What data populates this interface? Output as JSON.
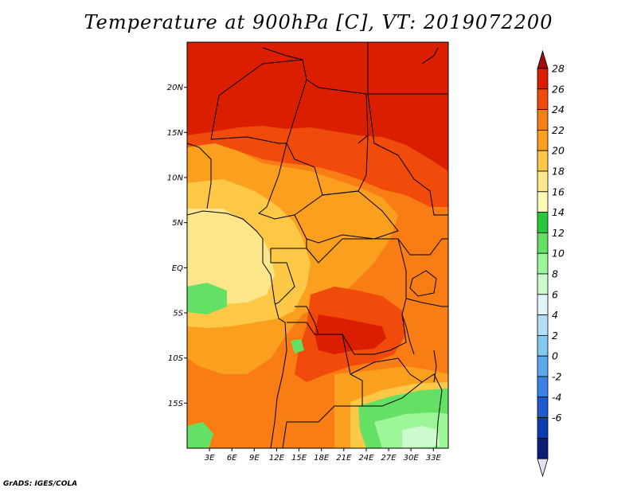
{
  "title": "Temperature at 900hPa [C], VT: 2019072200",
  "credit": "GrADS: IGES/COLA",
  "map": {
    "lon_range": [
      0,
      35
    ],
    "lat_range": [
      -20,
      25
    ],
    "lat_ticks": [
      {
        "value": 20,
        "label": "20N"
      },
      {
        "value": 15,
        "label": "15N"
      },
      {
        "value": 10,
        "label": "10N"
      },
      {
        "value": 5,
        "label": "5N"
      },
      {
        "value": 0,
        "label": "EQ"
      },
      {
        "value": -5,
        "label": "5S"
      },
      {
        "value": -10,
        "label": "10S"
      },
      {
        "value": -15,
        "label": "15S"
      }
    ],
    "lon_ticks": [
      {
        "value": 3,
        "label": "3E"
      },
      {
        "value": 6,
        "label": "6E"
      },
      {
        "value": 9,
        "label": "9E"
      },
      {
        "value": 12,
        "label": "12E"
      },
      {
        "value": 15,
        "label": "15E"
      },
      {
        "value": 18,
        "label": "18E"
      },
      {
        "value": 21,
        "label": "21E"
      },
      {
        "value": 24,
        "label": "24E"
      },
      {
        "value": 27,
        "label": "27E"
      },
      {
        "value": 30,
        "label": "30E"
      },
      {
        "value": 33,
        "label": "33E"
      }
    ]
  },
  "colorbar": {
    "levels": [
      {
        "label": "28",
        "color": "#a50a0a"
      },
      {
        "label": "26",
        "color": "#dc1e00"
      },
      {
        "label": "24",
        "color": "#f04b0a"
      },
      {
        "label": "22",
        "color": "#f87d14"
      },
      {
        "label": "20",
        "color": "#faa01e"
      },
      {
        "label": "18",
        "color": "#fcc846"
      },
      {
        "label": "16",
        "color": "#fce68c"
      },
      {
        "label": "14",
        "color": "#fefab4"
      },
      {
        "label": "12",
        "color": "#28c83c"
      },
      {
        "label": "10",
        "color": "#64e164"
      },
      {
        "label": "8",
        "color": "#9cf596"
      },
      {
        "label": "6",
        "color": "#cdfacd"
      },
      {
        "label": "4",
        "color": "#e1f5fa"
      },
      {
        "label": "2",
        "color": "#b4def5"
      },
      {
        "label": "0",
        "color": "#82c8f0"
      },
      {
        "label": "-2",
        "color": "#5aaaeb"
      },
      {
        "label": "-4",
        "color": "#3c82e6"
      },
      {
        "label": "-6",
        "color": "#1e5ad2"
      }
    ],
    "bottom_cap_colors": [
      "#0a3cb4",
      "#0a1e78"
    ],
    "below_min_color": "#e1e1f5"
  }
}
